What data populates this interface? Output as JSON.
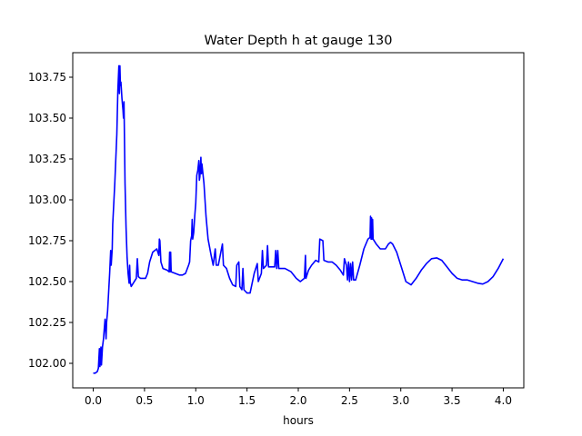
{
  "chart_data": {
    "type": "line",
    "title": "Water Depth h at gauge 130",
    "xlabel": "hours",
    "ylabel": "",
    "xlim": [
      -0.2,
      4.2
    ],
    "ylim": [
      101.85,
      103.9
    ],
    "xticks": [
      0.0,
      0.5,
      1.0,
      1.5,
      2.0,
      2.5,
      3.0,
      3.5,
      4.0
    ],
    "xtick_labels": [
      "0.0",
      "0.5",
      "1.0",
      "1.5",
      "2.0",
      "2.5",
      "3.0",
      "3.5",
      "4.0"
    ],
    "yticks": [
      102.0,
      102.25,
      102.5,
      102.75,
      103.0,
      103.25,
      103.5,
      103.75
    ],
    "ytick_labels": [
      "102.00",
      "102.25",
      "102.50",
      "102.75",
      "103.00",
      "103.25",
      "103.50",
      "103.75"
    ],
    "grid": false,
    "series": [
      {
        "name": "",
        "color": "#0000ff",
        "points": [
          [
            0.0,
            101.94
          ],
          [
            0.02,
            101.94
          ],
          [
            0.04,
            101.95
          ],
          [
            0.05,
            101.97
          ],
          [
            0.06,
            102.09
          ],
          [
            0.065,
            101.98
          ],
          [
            0.075,
            102.1
          ],
          [
            0.08,
            101.99
          ],
          [
            0.09,
            102.1
          ],
          [
            0.1,
            102.15
          ],
          [
            0.115,
            102.27
          ],
          [
            0.125,
            102.15
          ],
          [
            0.13,
            102.25
          ],
          [
            0.14,
            102.32
          ],
          [
            0.16,
            102.55
          ],
          [
            0.17,
            102.69
          ],
          [
            0.175,
            102.6
          ],
          [
            0.185,
            102.7
          ],
          [
            0.19,
            102.85
          ],
          [
            0.21,
            103.1
          ],
          [
            0.23,
            103.4
          ],
          [
            0.24,
            103.67
          ],
          [
            0.25,
            103.82
          ],
          [
            0.255,
            103.65
          ],
          [
            0.26,
            103.82
          ],
          [
            0.265,
            103.7
          ],
          [
            0.27,
            103.72
          ],
          [
            0.28,
            103.62
          ],
          [
            0.29,
            103.55
          ],
          [
            0.295,
            103.5
          ],
          [
            0.3,
            103.6
          ],
          [
            0.31,
            103.1
          ],
          [
            0.32,
            102.83
          ],
          [
            0.33,
            102.65
          ],
          [
            0.34,
            102.55
          ],
          [
            0.35,
            102.49
          ],
          [
            0.355,
            102.6
          ],
          [
            0.36,
            102.5
          ],
          [
            0.37,
            102.47
          ],
          [
            0.39,
            102.49
          ],
          [
            0.42,
            102.52
          ],
          [
            0.43,
            102.64
          ],
          [
            0.44,
            102.53
          ],
          [
            0.46,
            102.52
          ],
          [
            0.48,
            102.52
          ],
          [
            0.51,
            102.52
          ],
          [
            0.53,
            102.55
          ],
          [
            0.55,
            102.62
          ],
          [
            0.58,
            102.68
          ],
          [
            0.62,
            102.7
          ],
          [
            0.64,
            102.66
          ],
          [
            0.645,
            102.76
          ],
          [
            0.65,
            102.75
          ],
          [
            0.66,
            102.62
          ],
          [
            0.68,
            102.58
          ],
          [
            0.72,
            102.57
          ],
          [
            0.74,
            102.56
          ],
          [
            0.745,
            102.68
          ],
          [
            0.75,
            102.56
          ],
          [
            0.755,
            102.68
          ],
          [
            0.76,
            102.56
          ],
          [
            0.8,
            102.55
          ],
          [
            0.84,
            102.54
          ],
          [
            0.87,
            102.54
          ],
          [
            0.9,
            102.55
          ],
          [
            0.93,
            102.6
          ],
          [
            0.94,
            102.62
          ],
          [
            0.95,
            102.75
          ],
          [
            0.96,
            102.78
          ],
          [
            0.965,
            102.88
          ],
          [
            0.97,
            102.76
          ],
          [
            0.98,
            102.8
          ],
          [
            0.99,
            102.9
          ],
          [
            1.0,
            102.98
          ],
          [
            1.01,
            103.15
          ],
          [
            1.02,
            103.18
          ],
          [
            1.03,
            103.24
          ],
          [
            1.035,
            103.12
          ],
          [
            1.04,
            103.14
          ],
          [
            1.05,
            103.26
          ],
          [
            1.055,
            103.16
          ],
          [
            1.06,
            103.22
          ],
          [
            1.08,
            103.1
          ],
          [
            1.1,
            102.9
          ],
          [
            1.12,
            102.76
          ],
          [
            1.15,
            102.66
          ],
          [
            1.17,
            102.6
          ],
          [
            1.19,
            102.7
          ],
          [
            1.2,
            102.6
          ],
          [
            1.22,
            102.6
          ],
          [
            1.26,
            102.73
          ],
          [
            1.27,
            102.6
          ],
          [
            1.3,
            102.58
          ],
          [
            1.33,
            102.52
          ],
          [
            1.36,
            102.48
          ],
          [
            1.39,
            102.47
          ],
          [
            1.4,
            102.6
          ],
          [
            1.42,
            102.62
          ],
          [
            1.43,
            102.47
          ],
          [
            1.45,
            102.45
          ],
          [
            1.46,
            102.58
          ],
          [
            1.47,
            102.45
          ],
          [
            1.5,
            102.43
          ],
          [
            1.53,
            102.43
          ],
          [
            1.57,
            102.55
          ],
          [
            1.6,
            102.61
          ],
          [
            1.61,
            102.5
          ],
          [
            1.64,
            102.55
          ],
          [
            1.65,
            102.69
          ],
          [
            1.66,
            102.58
          ],
          [
            1.69,
            102.6
          ],
          [
            1.7,
            102.72
          ],
          [
            1.71,
            102.59
          ],
          [
            1.75,
            102.59
          ],
          [
            1.77,
            102.59
          ],
          [
            1.78,
            102.69
          ],
          [
            1.79,
            102.58
          ],
          [
            1.8,
            102.69
          ],
          [
            1.81,
            102.58
          ],
          [
            1.87,
            102.58
          ],
          [
            1.93,
            102.56
          ],
          [
            1.98,
            102.52
          ],
          [
            2.02,
            102.5
          ],
          [
            2.06,
            102.52
          ],
          [
            2.07,
            102.66
          ],
          [
            2.075,
            102.52
          ],
          [
            2.1,
            102.57
          ],
          [
            2.13,
            102.6
          ],
          [
            2.17,
            102.63
          ],
          [
            2.2,
            102.62
          ],
          [
            2.21,
            102.76
          ],
          [
            2.24,
            102.75
          ],
          [
            2.25,
            102.63
          ],
          [
            2.29,
            102.62
          ],
          [
            2.33,
            102.62
          ],
          [
            2.37,
            102.6
          ],
          [
            2.41,
            102.57
          ],
          [
            2.44,
            102.54
          ],
          [
            2.45,
            102.64
          ],
          [
            2.47,
            102.6
          ],
          [
            2.48,
            102.51
          ],
          [
            2.49,
            102.62
          ],
          [
            2.5,
            102.5
          ],
          [
            2.51,
            102.61
          ],
          [
            2.52,
            102.51
          ],
          [
            2.53,
            102.62
          ],
          [
            2.54,
            102.51
          ],
          [
            2.56,
            102.51
          ],
          [
            2.6,
            102.6
          ],
          [
            2.64,
            102.7
          ],
          [
            2.68,
            102.76
          ],
          [
            2.7,
            102.77
          ],
          [
            2.705,
            102.9
          ],
          [
            2.71,
            102.76
          ],
          [
            2.715,
            102.89
          ],
          [
            2.72,
            102.76
          ],
          [
            2.725,
            102.88
          ],
          [
            2.73,
            102.76
          ],
          [
            2.76,
            102.73
          ],
          [
            2.8,
            102.7
          ],
          [
            2.85,
            102.7
          ],
          [
            2.88,
            102.73
          ],
          [
            2.9,
            102.74
          ],
          [
            2.92,
            102.73
          ],
          [
            2.96,
            102.68
          ],
          [
            3.0,
            102.6
          ],
          [
            3.05,
            102.5
          ],
          [
            3.1,
            102.48
          ],
          [
            3.15,
            102.52
          ],
          [
            3.2,
            102.57
          ],
          [
            3.25,
            102.61
          ],
          [
            3.3,
            102.64
          ],
          [
            3.35,
            102.645
          ],
          [
            3.4,
            102.63
          ],
          [
            3.45,
            102.59
          ],
          [
            3.5,
            102.55
          ],
          [
            3.55,
            102.52
          ],
          [
            3.6,
            102.51
          ],
          [
            3.65,
            102.51
          ],
          [
            3.7,
            102.5
          ],
          [
            3.75,
            102.49
          ],
          [
            3.8,
            102.485
          ],
          [
            3.85,
            102.5
          ],
          [
            3.9,
            102.53
          ],
          [
            3.95,
            102.58
          ],
          [
            4.0,
            102.64
          ]
        ]
      }
    ]
  }
}
